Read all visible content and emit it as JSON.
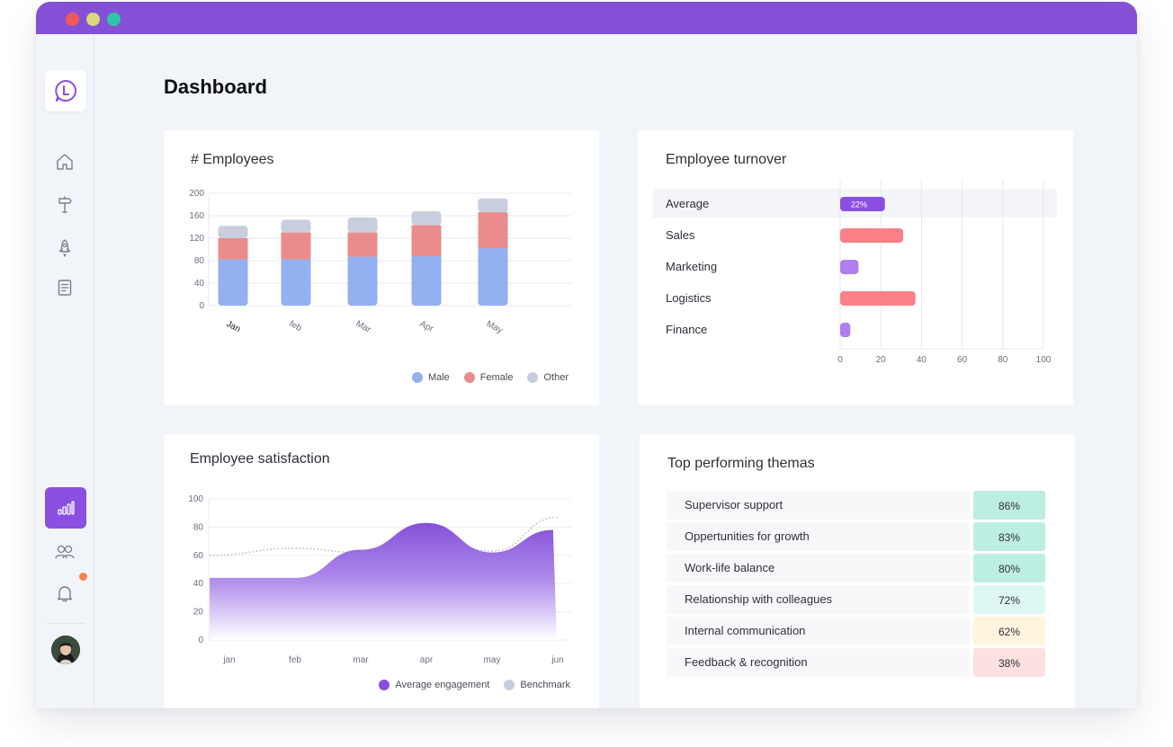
{
  "page": {
    "title": "Dashboard"
  },
  "colors": {
    "brand": "#8450d6",
    "accent": "#8a4fe0",
    "male": "#93b0f0",
    "female": "#ea8c8c",
    "other": "#c8cedd",
    "turnover_red": "#fb8088",
    "turnover_purple": "#b07ef0",
    "notif": "#f7824a"
  },
  "sidebar": {
    "icons": [
      "logo-icon",
      "home-icon",
      "signpost-icon",
      "rocket-icon",
      "document-icon",
      "bar-chart-icon",
      "users-icon",
      "bell-icon"
    ],
    "active": "bar-chart-icon"
  },
  "employees_card": {
    "title": "# Employees",
    "legend": [
      "Male",
      "Female",
      "Other"
    ]
  },
  "turnover_card": {
    "title": "Employee turnover"
  },
  "satisfaction_card": {
    "title": "Employee satisfaction",
    "legend": [
      "Average engagement",
      "Benchmark"
    ]
  },
  "themes_card": {
    "title": "Top performing themas",
    "rows": [
      {
        "label": "Supervisor support",
        "value": "86%",
        "color": "#bdeee3"
      },
      {
        "label": "Oppertunities for growth",
        "value": "83%",
        "color": "#bdeee3"
      },
      {
        "label": "Work-life balance",
        "value": "80%",
        "color": "#bdeee3"
      },
      {
        "label": "Relationship with colleagues",
        "value": "72%",
        "color": "#ddf8f3"
      },
      {
        "label": "Internal communication",
        "value": "62%",
        "color": "#fff4dc"
      },
      {
        "label": "Feedback & recognition",
        "value": "38%",
        "color": "#fde0e0"
      }
    ]
  },
  "chart_data": [
    {
      "type": "bar",
      "stacked": true,
      "title": "# Employees",
      "categories": [
        "Jan",
        "feb",
        "Mar",
        "Apr",
        "May"
      ],
      "series": [
        {
          "name": "Male",
          "values": [
            82,
            82,
            87,
            88,
            102
          ],
          "color": "#93b0f0"
        },
        {
          "name": "Female",
          "values": [
            38,
            48,
            43,
            55,
            64
          ],
          "color": "#ea8c8c"
        },
        {
          "name": "Other",
          "values": [
            22,
            23,
            27,
            25,
            25
          ],
          "color": "#c8cedd"
        }
      ],
      "yticks": [
        0,
        40,
        80,
        120,
        160,
        200
      ],
      "ylim": [
        0,
        200
      ],
      "grid": true,
      "legend": "bottom-right"
    },
    {
      "type": "bar",
      "orientation": "horizontal",
      "title": "Employee turnover",
      "categories": [
        "Average",
        "Sales",
        "Marketing",
        "Logistics",
        "Finance"
      ],
      "values": [
        22,
        31,
        9,
        37,
        5
      ],
      "value_label": "22%",
      "colors": [
        "#8a4fe0",
        "#fb8088",
        "#b07ef0",
        "#fb8088",
        "#b07ef0"
      ],
      "xticks": [
        0,
        20,
        40,
        60,
        80,
        100
      ],
      "xlim": [
        0,
        100
      ],
      "grid": true
    },
    {
      "type": "area",
      "title": "Employee satisfaction",
      "x": [
        "jan",
        "feb",
        "mar",
        "apr",
        "may",
        "jun"
      ],
      "series": [
        {
          "name": "Average engagement",
          "values": [
            44,
            44,
            64,
            83,
            62,
            78
          ],
          "color": "#8a4fe0"
        },
        {
          "name": "Benchmark",
          "values": [
            60,
            65,
            62,
            74,
            63,
            87
          ],
          "color": "#c8cedd"
        }
      ],
      "yticks": [
        0,
        20,
        40,
        60,
        80,
        100
      ],
      "ylim": [
        0,
        100
      ],
      "grid": true,
      "legend": "bottom-right"
    }
  ]
}
